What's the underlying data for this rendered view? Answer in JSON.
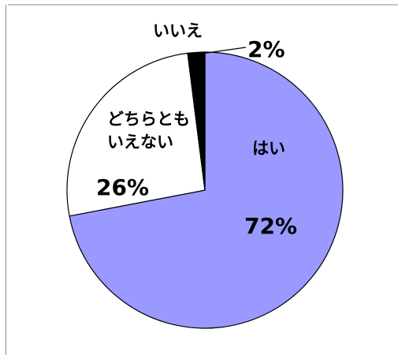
{
  "chart_data": {
    "type": "pie",
    "title": "",
    "slices": [
      {
        "name": "はい",
        "name_lines": [
          "はい"
        ],
        "value": 72,
        "value_label": "72%",
        "color": "#9999ff"
      },
      {
        "name": "どちらともいえない",
        "name_lines": [
          "どちらとも",
          "いえない"
        ],
        "value": 26,
        "value_label": "26%",
        "color": "#ffffff"
      },
      {
        "name": "いいえ",
        "name_lines": [
          "いいえ"
        ],
        "value": 2,
        "value_label": "2%",
        "color": "#000000"
      }
    ],
    "legend": "none",
    "start": "top",
    "direction": "clockwise"
  }
}
